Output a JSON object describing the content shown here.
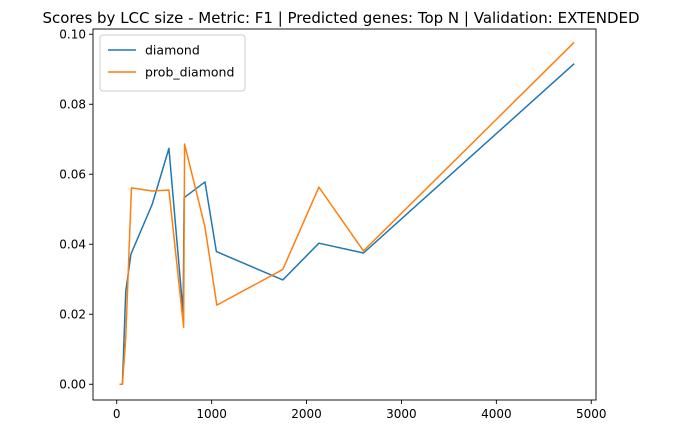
{
  "chart_data": {
    "type": "line",
    "title": "Scores by LCC size - Metric: F1 | Predicted genes: Top N | Validation: EXTENDED",
    "xlabel": "",
    "ylabel": "",
    "xlim": [
      -250,
      5050
    ],
    "ylim": [
      -0.0045,
      0.1015
    ],
    "x_ticks": [
      0,
      1000,
      2000,
      3000,
      4000,
      5000
    ],
    "x_tick_labels": [
      "0",
      "1000",
      "2000",
      "3000",
      "4000",
      "5000"
    ],
    "y_ticks": [
      0.0,
      0.02,
      0.04,
      0.06,
      0.08,
      0.1
    ],
    "y_tick_labels": [
      "0.00",
      "0.02",
      "0.04",
      "0.06",
      "0.08",
      "0.10"
    ],
    "grid": false,
    "legend_position": "top-left",
    "series": [
      {
        "name": "diamond",
        "color": "#1f77b4",
        "points": [
          [
            30,
            0.0
          ],
          [
            60,
            0.0
          ],
          [
            95,
            0.0265
          ],
          [
            150,
            0.0372
          ],
          [
            375,
            0.0515
          ],
          [
            550,
            0.0674
          ],
          [
            700,
            0.0203
          ],
          [
            710,
            0.0533
          ],
          [
            930,
            0.0578
          ],
          [
            1050,
            0.0379
          ],
          [
            1750,
            0.0298
          ],
          [
            2130,
            0.0403
          ],
          [
            2600,
            0.0375
          ],
          [
            4820,
            0.0916
          ]
        ]
      },
      {
        "name": "prob_diamond",
        "color": "#ff7f0e",
        "points": [
          [
            30,
            0.0
          ],
          [
            60,
            0.0
          ],
          [
            95,
            0.0132
          ],
          [
            155,
            0.0561
          ],
          [
            375,
            0.0552
          ],
          [
            550,
            0.0555
          ],
          [
            705,
            0.0163
          ],
          [
            715,
            0.0686
          ],
          [
            930,
            0.0449
          ],
          [
            1055,
            0.0226
          ],
          [
            1750,
            0.0328
          ],
          [
            2130,
            0.0563
          ],
          [
            2600,
            0.0381
          ],
          [
            4820,
            0.0977
          ]
        ]
      }
    ]
  }
}
